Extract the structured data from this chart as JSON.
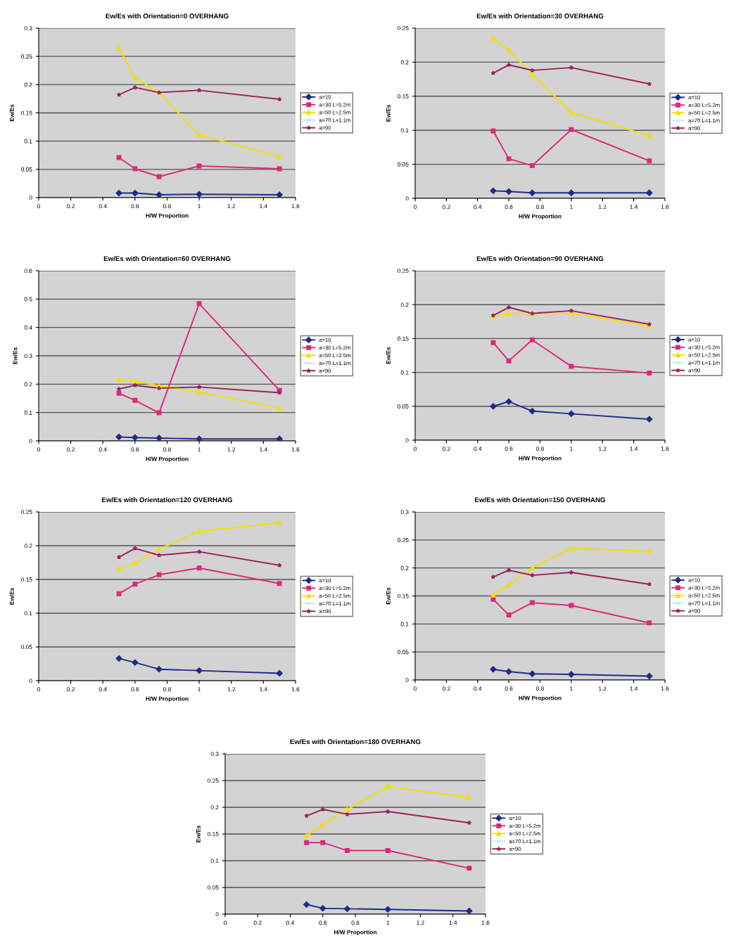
{
  "chart_data": [
    {
      "type": "line",
      "title": "Ew/Es with Orientation=0 OVERHANG",
      "xlabel": "H/W Proportion",
      "ylabel": "Ew/Es",
      "x": [
        0.5,
        0.6,
        0.75,
        1,
        1.5
      ],
      "xlim": [
        0,
        1.6
      ],
      "xticks": [
        0,
        0.2,
        0.4,
        0.6,
        0.8,
        1,
        1.2,
        1.4,
        1.6
      ],
      "ylim": [
        0,
        0.3
      ],
      "yticks": [
        0,
        0.05,
        0.1,
        0.15,
        0.2,
        0.25,
        0.3
      ],
      "grid": "y",
      "legend": "right",
      "line_style": "solid",
      "series": [
        {
          "name": "a=10",
          "color": "#1f2a8a",
          "marker": "diamond",
          "values": [
            0.008,
            0.008,
            0.005,
            0.006,
            0.005
          ]
        },
        {
          "name": "a=30 L=5.2m",
          "color": "#e0287a",
          "marker": "square",
          "values": [
            0.071,
            0.051,
            0.037,
            0.056,
            0.051
          ]
        },
        {
          "name": "a=50 L=2.5m",
          "color": "#f2e200",
          "marker": "triangle",
          "values": [
            0.265,
            0.212,
            0.186,
            0.111,
            0.073
          ]
        },
        {
          "name": "a=70 L=1.1m",
          "color": "#c8eef0",
          "marker": "cross",
          "values": [
            null,
            null,
            null,
            null,
            null
          ]
        },
        {
          "name": "a=90",
          "color": "#9b1f5e",
          "marker": "star",
          "values": [
            0.182,
            0.195,
            0.186,
            0.19,
            0.174
          ]
        }
      ]
    },
    {
      "type": "line",
      "title": "Ew/Es with Orientation=30 OVERHANG",
      "xlabel": "H/W Proportion",
      "ylabel": "Ew/Es",
      "x": [
        0.5,
        0.6,
        0.75,
        1,
        1.5
      ],
      "xlim": [
        0,
        1.6
      ],
      "xticks": [
        0,
        0.2,
        0.4,
        0.6,
        0.8,
        1,
        1.2,
        1.4,
        1.6
      ],
      "ylim": [
        0,
        0.25
      ],
      "yticks": [
        0,
        0.05,
        0.1,
        0.15,
        0.2,
        0.25
      ],
      "grid": "y",
      "legend": "right",
      "line_style": "solid",
      "series": [
        {
          "name": "a=10",
          "color": "#1f2a8a",
          "marker": "diamond",
          "values": [
            0.011,
            0.01,
            0.008,
            0.008,
            0.008
          ]
        },
        {
          "name": "a=30 L=5.2m",
          "color": "#e0287a",
          "marker": "square",
          "values": [
            0.099,
            0.058,
            0.048,
            0.101,
            0.055
          ]
        },
        {
          "name": "a=50 L=2.5m",
          "color": "#f2e200",
          "marker": "triangle",
          "values": [
            0.235,
            0.218,
            0.182,
            0.126,
            0.092
          ]
        },
        {
          "name": "a=70 L=1.1m",
          "color": "#c8eef0",
          "marker": "cross",
          "values": [
            null,
            null,
            null,
            null,
            null
          ]
        },
        {
          "name": "a=90",
          "color": "#9b1f5e",
          "marker": "star",
          "values": [
            0.184,
            0.196,
            0.188,
            0.192,
            0.168
          ]
        }
      ]
    },
    {
      "type": "line",
      "title": "Ew/Es with Orientation=60 OVERHANG",
      "xlabel": "H/W Proportion",
      "ylabel": "Ew/Es",
      "x": [
        0.5,
        0.6,
        0.75,
        1,
        1.5
      ],
      "xlim": [
        0,
        1.6
      ],
      "xticks": [
        0,
        0.2,
        0.4,
        0.6,
        0.8,
        1,
        1.2,
        1.4,
        1.6
      ],
      "ylim": [
        0,
        0.6
      ],
      "yticks": [
        0,
        0.1,
        0.2,
        0.3,
        0.4,
        0.5,
        0.6
      ],
      "grid": "y",
      "legend": "right",
      "line_style": "solid",
      "series": [
        {
          "name": "a=10",
          "color": "#1f2a8a",
          "marker": "diamond",
          "values": [
            0.014,
            0.012,
            0.01,
            0.007,
            0.007
          ]
        },
        {
          "name": "a=30 L=5.2m",
          "color": "#e0287a",
          "marker": "square",
          "values": [
            0.168,
            0.143,
            0.099,
            0.484,
            0.178
          ]
        },
        {
          "name": "a=50 L=2.5m",
          "color": "#f2e200",
          "marker": "triangle",
          "values": [
            0.217,
            0.212,
            0.194,
            0.172,
            0.115
          ]
        },
        {
          "name": "a=70 L=1.1m",
          "color": "#c8eef0",
          "marker": "cross",
          "values": [
            null,
            null,
            null,
            null,
            null
          ]
        },
        {
          "name": "a=90",
          "color": "#9b1f5e",
          "marker": "star",
          "values": [
            0.183,
            0.196,
            0.186,
            0.19,
            0.17
          ]
        }
      ]
    },
    {
      "type": "line",
      "title": "Ew/Es with Orientation=90 OVERHANG",
      "xlabel": "H/W Proportion",
      "ylabel": "Ew/Es",
      "x": [
        0.5,
        0.6,
        0.75,
        1,
        1.5
      ],
      "xlim": [
        0,
        1.6
      ],
      "xticks": [
        0,
        0.2,
        0.4,
        0.6,
        0.8,
        1,
        1.2,
        1.4,
        1.6
      ],
      "ylim": [
        0,
        0.25
      ],
      "yticks": [
        0,
        0.05,
        0.1,
        0.15,
        0.2,
        0.25
      ],
      "grid": "y",
      "legend": "right",
      "line_style": "solid",
      "series": [
        {
          "name": "a=10",
          "color": "#1f2a8a",
          "marker": "diamond",
          "values": [
            0.05,
            0.057,
            0.043,
            0.039,
            0.031
          ]
        },
        {
          "name": "a=30 L=5.2m",
          "color": "#e0287a",
          "marker": "square",
          "values": [
            0.144,
            0.117,
            0.148,
            0.109,
            0.099
          ]
        },
        {
          "name": "a=50 L=2.5m",
          "color": "#f2e200",
          "marker": "triangle",
          "values": [
            0.183,
            0.187,
            0.187,
            0.187,
            0.169
          ]
        },
        {
          "name": "a=70 L=1.1m",
          "color": "#c8eef0",
          "marker": "cross",
          "values": [
            null,
            null,
            null,
            null,
            null
          ]
        },
        {
          "name": "a=90",
          "color": "#9b1f5e",
          "marker": "star",
          "values": [
            0.184,
            0.196,
            0.187,
            0.191,
            0.171
          ]
        }
      ]
    },
    {
      "type": "line",
      "title": "Ew/Es with Orientation=120 OVERHANG",
      "xlabel": "H/W Proportion",
      "ylabel": "Ew/Es",
      "x": [
        0.5,
        0.6,
        0.75,
        1,
        1.5
      ],
      "xlim": [
        0,
        1.6
      ],
      "xticks": [
        0,
        0.2,
        0.4,
        0.6,
        0.8,
        1,
        1.2,
        1.4,
        1.6
      ],
      "ylim": [
        0,
        0.25
      ],
      "yticks": [
        0,
        0.05,
        0.1,
        0.15,
        0.2,
        0.25
      ],
      "grid": "y",
      "legend": "right",
      "line_style": "solid",
      "series": [
        {
          "name": "a=10",
          "color": "#1f2a8a",
          "marker": "diamond",
          "values": [
            0.033,
            0.027,
            0.017,
            0.015,
            0.011
          ]
        },
        {
          "name": "a=30 L=5.2m",
          "color": "#e0287a",
          "marker": "square",
          "values": [
            0.129,
            0.143,
            0.157,
            0.167,
            0.144
          ]
        },
        {
          "name": "a=50 L=2.5m",
          "color": "#f2e200",
          "marker": "triangle",
          "values": [
            0.166,
            0.174,
            0.195,
            0.221,
            0.234
          ]
        },
        {
          "name": "a=70 L=1.1m",
          "color": "#c8eef0",
          "marker": "cross",
          "values": [
            null,
            null,
            null,
            null,
            null
          ]
        },
        {
          "name": "a=90",
          "color": "#9b1f5e",
          "marker": "star",
          "values": [
            0.183,
            0.196,
            0.186,
            0.191,
            0.171
          ]
        }
      ]
    },
    {
      "type": "line",
      "title": "Ew/Es with Orientation=150 OVERHANG",
      "xlabel": "H/W Proportion",
      "ylabel": "Ew/Es",
      "x": [
        0.5,
        0.6,
        0.75,
        1,
        1.5
      ],
      "xlim": [
        0,
        1.6
      ],
      "xticks": [
        0,
        0.2,
        0.4,
        0.6,
        0.8,
        1,
        1.2,
        1.4,
        1.6
      ],
      "ylim": [
        0,
        0.3
      ],
      "yticks": [
        0,
        0.05,
        0.1,
        0.15,
        0.2,
        0.25,
        0.3
      ],
      "grid": "y",
      "legend": "right",
      "line_style": "solid",
      "series": [
        {
          "name": "a=10",
          "color": "#1f2a8a",
          "marker": "diamond",
          "values": [
            0.019,
            0.015,
            0.011,
            0.01,
            0.007
          ]
        },
        {
          "name": "a=30 L=5.2m",
          "color": "#e0287a",
          "marker": "square",
          "values": [
            0.144,
            0.116,
            0.138,
            0.133,
            0.102
          ]
        },
        {
          "name": "a=50 L=2.5m",
          "color": "#f2e200",
          "marker": "triangle",
          "values": [
            0.152,
            0.17,
            0.2,
            0.235,
            0.23
          ]
        },
        {
          "name": "a=70 L=1.1m",
          "color": "#c8eef0",
          "marker": "cross",
          "values": [
            null,
            null,
            null,
            null,
            null
          ]
        },
        {
          "name": "a=90",
          "color": "#9b1f5e",
          "marker": "star",
          "values": [
            0.184,
            0.196,
            0.187,
            0.192,
            0.171
          ]
        }
      ]
    },
    {
      "type": "line",
      "title": "Ew/Es with Orientation=180 OVERHANG",
      "xlabel": "H/W Proportion",
      "ylabel": "Ew/Es",
      "x": [
        0.5,
        0.6,
        0.75,
        1,
        1.5
      ],
      "xlim": [
        0,
        1.6
      ],
      "xticks": [
        0,
        0.2,
        0.4,
        0.6,
        0.8,
        1,
        1.2,
        1.4,
        1.6
      ],
      "ylim": [
        0,
        0.3
      ],
      "yticks": [
        0,
        0.05,
        0.1,
        0.15,
        0.2,
        0.25,
        0.3
      ],
      "grid": "y",
      "legend": "right",
      "line_style": "solid",
      "series": [
        {
          "name": "a=10",
          "color": "#1f2a8a",
          "marker": "diamond",
          "values": [
            0.018,
            0.011,
            0.01,
            0.009,
            0.006
          ]
        },
        {
          "name": "a=30 L=5.2m",
          "color": "#e0287a",
          "marker": "square",
          "values": [
            0.134,
            0.134,
            0.119,
            0.119,
            0.086
          ]
        },
        {
          "name": "a=50 L=2.5m",
          "color": "#f2e200",
          "marker": "triangle",
          "values": [
            0.147,
            0.168,
            0.196,
            0.239,
            0.218
          ]
        },
        {
          "name": "a=70 L=1.1m",
          "color": "#c8eef0",
          "marker": "cross",
          "values": [
            null,
            null,
            null,
            null,
            null
          ]
        },
        {
          "name": "a=90",
          "color": "#9b1f5e",
          "marker": "star",
          "values": [
            0.184,
            0.196,
            0.187,
            0.192,
            0.171
          ]
        }
      ]
    }
  ]
}
